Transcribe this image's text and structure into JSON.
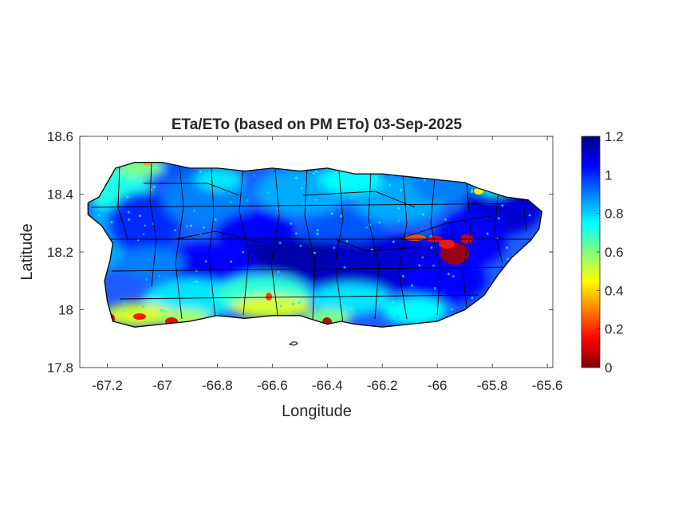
{
  "figure": {
    "title": "ETa/ETo (based on PM ETo) 03-Sep-2025",
    "xlabel": "Longitude",
    "ylabel": "Latitude",
    "xlim": [
      -67.3,
      -65.58
    ],
    "ylim": [
      17.8,
      18.6
    ],
    "x_ticks": [
      -67.2,
      -67,
      -66.8,
      -66.6,
      -66.4,
      -66.2,
      -66,
      -65.8,
      -65.6
    ],
    "x_tick_labels": [
      "-67.2",
      "-67",
      "-66.8",
      "-66.6",
      "-66.4",
      "-66.2",
      "-66",
      "-65.8",
      "-65.6"
    ],
    "y_ticks": [
      17.8,
      18,
      18.2,
      18.4,
      18.6
    ],
    "y_tick_labels": [
      "17.8",
      "18",
      "18.2",
      "18.4",
      "18.6"
    ]
  },
  "colorbar": {
    "range": [
      0,
      1.2
    ],
    "ticks": [
      0,
      0.2,
      0.4,
      0.6,
      0.8,
      1,
      1.2
    ],
    "tick_labels": [
      "0",
      "0.2",
      "0.4",
      "0.6",
      "0.8",
      "1",
      "1.2"
    ],
    "colormap": "jet-reversed",
    "colors": [
      "#800000",
      "#ff0000",
      "#ff8000",
      "#ffff00",
      "#80ff80",
      "#00ffff",
      "#0080ff",
      "#0000ff",
      "#000080"
    ]
  },
  "map": {
    "region": "Puerto Rico",
    "island_outline": [
      [
        -67.27,
        18.37
      ],
      [
        -67.23,
        18.39
      ],
      [
        -67.2,
        18.44
      ],
      [
        -67.17,
        18.49
      ],
      [
        -67.1,
        18.51
      ],
      [
        -67.0,
        18.51
      ],
      [
        -66.9,
        18.49
      ],
      [
        -66.8,
        18.49
      ],
      [
        -66.7,
        18.48
      ],
      [
        -66.6,
        18.49
      ],
      [
        -66.5,
        18.48
      ],
      [
        -66.4,
        18.49
      ],
      [
        -66.3,
        18.47
      ],
      [
        -66.2,
        18.47
      ],
      [
        -66.1,
        18.46
      ],
      [
        -66.0,
        18.45
      ],
      [
        -65.9,
        18.44
      ],
      [
        -65.85,
        18.42
      ],
      [
        -65.75,
        18.39
      ],
      [
        -65.67,
        18.38
      ],
      [
        -65.62,
        18.34
      ],
      [
        -65.63,
        18.28
      ],
      [
        -65.66,
        18.24
      ],
      [
        -65.73,
        18.18
      ],
      [
        -65.78,
        18.12
      ],
      [
        -65.83,
        18.05
      ],
      [
        -65.9,
        18.0
      ],
      [
        -66.0,
        17.96
      ],
      [
        -66.1,
        17.95
      ],
      [
        -66.2,
        17.94
      ],
      [
        -66.3,
        17.95
      ],
      [
        -66.35,
        17.96
      ],
      [
        -66.4,
        17.95
      ],
      [
        -66.5,
        17.98
      ],
      [
        -66.6,
        17.98
      ],
      [
        -66.7,
        17.97
      ],
      [
        -66.8,
        17.98
      ],
      [
        -66.9,
        17.96
      ],
      [
        -67.0,
        17.95
      ],
      [
        -67.1,
        17.94
      ],
      [
        -67.18,
        17.96
      ],
      [
        -67.2,
        18.03
      ],
      [
        -67.21,
        18.1
      ],
      [
        -67.19,
        18.17
      ],
      [
        -67.18,
        18.23
      ],
      [
        -67.22,
        18.29
      ],
      [
        -67.27,
        18.33
      ]
    ]
  }
}
